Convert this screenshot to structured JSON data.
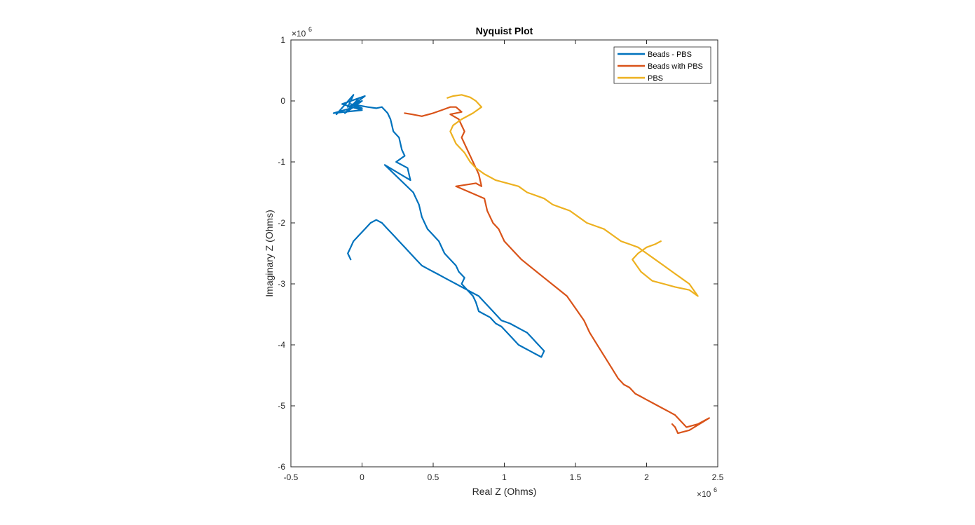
{
  "chart_data": {
    "type": "line",
    "title": "Nyquist Plot",
    "xlabel": "Real Z (Ohms)",
    "ylabel": "Imaginary Z (Ohms)",
    "x_exponent_label": "×10",
    "x_exponent_power": "6",
    "y_exponent_label": "×10",
    "y_exponent_power": "6",
    "xlim": [
      -0.5,
      2.5
    ],
    "ylim": [
      -6,
      1
    ],
    "xticks": [
      -0.5,
      0,
      0.5,
      1,
      1.5,
      2,
      2.5
    ],
    "xtick_labels": [
      "-0.5",
      "0",
      "0.5",
      "1",
      "1.5",
      "2",
      "2.5"
    ],
    "yticks": [
      -6,
      -5,
      -4,
      -3,
      -2,
      -1,
      0,
      1
    ],
    "ytick_labels": [
      "-6",
      "-5",
      "-4",
      "-3",
      "-2",
      "-1",
      "0",
      "1"
    ],
    "grid": false,
    "legend_position": "top-right",
    "series": [
      {
        "name": "Beads - PBS",
        "color": "#0072BD",
        "x": [
          -0.18,
          -0.06,
          -0.1,
          0.0,
          -0.12,
          -0.02,
          -0.08,
          0.02,
          -0.14,
          0.0,
          -0.2,
          -0.05,
          0.0,
          -0.08,
          0.04,
          0.1,
          0.14,
          0.18,
          0.2,
          0.22,
          0.26,
          0.28,
          0.3,
          0.24,
          0.32,
          0.34,
          0.16,
          0.36,
          0.38,
          0.4,
          0.42,
          0.44,
          0.46,
          0.5,
          0.54,
          0.58,
          0.62,
          0.66,
          0.68,
          0.72,
          0.7,
          0.74,
          0.78,
          0.8,
          0.82,
          0.86,
          0.9,
          0.92,
          0.94,
          0.98,
          1.02,
          1.06,
          1.1,
          1.14,
          1.18,
          1.22,
          1.26,
          1.28,
          1.24,
          1.2,
          1.16,
          1.12,
          1.08,
          1.04,
          0.98,
          0.94,
          0.9,
          0.86,
          0.82,
          0.78,
          0.74,
          0.7,
          0.66,
          0.62,
          0.58,
          0.54,
          0.5,
          0.46,
          0.42,
          0.38,
          0.34,
          0.3,
          0.26,
          0.22,
          0.18,
          0.14,
          0.1,
          0.06,
          0.02,
          -0.02,
          -0.06,
          -0.08,
          -0.1,
          -0.08
        ],
        "y": [
          -0.22,
          0.1,
          -0.1,
          0.0,
          -0.2,
          0.05,
          -0.1,
          0.08,
          -0.05,
          -0.15,
          -0.2,
          -0.1,
          -0.12,
          -0.05,
          -0.1,
          -0.12,
          -0.1,
          -0.2,
          -0.3,
          -0.5,
          -0.6,
          -0.8,
          -0.9,
          -1.0,
          -1.1,
          -1.3,
          -1.05,
          -1.5,
          -1.6,
          -1.7,
          -1.9,
          -2.0,
          -2.1,
          -2.2,
          -2.3,
          -2.5,
          -2.6,
          -2.7,
          -2.8,
          -2.9,
          -3.0,
          -3.1,
          -3.2,
          -3.3,
          -3.45,
          -3.5,
          -3.55,
          -3.6,
          -3.65,
          -3.7,
          -3.8,
          -3.9,
          -4.0,
          -4.05,
          -4.1,
          -4.15,
          -4.2,
          -4.1,
          -4.0,
          -3.9,
          -3.8,
          -3.75,
          -3.7,
          -3.65,
          -3.6,
          -3.5,
          -3.4,
          -3.3,
          -3.2,
          -3.15,
          -3.1,
          -3.05,
          -3.0,
          -2.95,
          -2.9,
          -2.85,
          -2.8,
          -2.75,
          -2.7,
          -2.6,
          -2.5,
          -2.4,
          -2.3,
          -2.2,
          -2.1,
          -2.0,
          -1.95,
          -2.0,
          -2.1,
          -2.2,
          -2.3,
          -2.4,
          -2.5,
          -2.6
        ]
      },
      {
        "name": "Beads with PBS",
        "color": "#D95319",
        "x": [
          0.3,
          0.35,
          0.42,
          0.5,
          0.56,
          0.62,
          0.66,
          0.7,
          0.66,
          0.62,
          0.68,
          0.72,
          0.7,
          0.74,
          0.76,
          0.78,
          0.8,
          0.82,
          0.84,
          0.8,
          0.66,
          0.86,
          0.88,
          0.9,
          0.92,
          0.96,
          1.0,
          1.06,
          1.12,
          1.2,
          1.28,
          1.36,
          1.44,
          1.5,
          1.56,
          1.6,
          1.64,
          1.68,
          1.72,
          1.76,
          1.8,
          1.84,
          1.88,
          1.92,
          1.96,
          2.0,
          2.04,
          2.08,
          2.12,
          2.16,
          2.2,
          2.24,
          2.28,
          2.36,
          2.44,
          2.3,
          2.22,
          2.2,
          2.18
        ],
        "y": [
          -0.2,
          -0.22,
          -0.25,
          -0.2,
          -0.15,
          -0.1,
          -0.1,
          -0.18,
          -0.2,
          -0.22,
          -0.3,
          -0.5,
          -0.6,
          -0.8,
          -0.9,
          -1.0,
          -1.1,
          -1.2,
          -1.4,
          -1.35,
          -1.4,
          -1.6,
          -1.8,
          -1.9,
          -2.0,
          -2.1,
          -2.3,
          -2.45,
          -2.6,
          -2.75,
          -2.9,
          -3.05,
          -3.2,
          -3.4,
          -3.6,
          -3.8,
          -3.95,
          -4.1,
          -4.25,
          -4.4,
          -4.55,
          -4.65,
          -4.7,
          -4.8,
          -4.85,
          -4.9,
          -4.95,
          -5.0,
          -5.05,
          -5.1,
          -5.15,
          -5.25,
          -5.35,
          -5.3,
          -5.2,
          -5.4,
          -5.45,
          -5.35,
          -5.3
        ]
      },
      {
        "name": "PBS",
        "color": "#EDB120",
        "x": [
          0.6,
          0.64,
          0.7,
          0.76,
          0.8,
          0.84,
          0.78,
          0.7,
          0.64,
          0.62,
          0.66,
          0.72,
          0.76,
          0.8,
          0.86,
          0.94,
          1.02,
          1.1,
          1.16,
          1.22,
          1.28,
          1.34,
          1.4,
          1.46,
          1.52,
          1.58,
          1.64,
          1.7,
          1.76,
          1.82,
          1.88,
          1.94,
          2.0,
          2.06,
          2.12,
          2.18,
          2.24,
          2.3,
          2.36,
          2.3,
          2.2,
          2.12,
          2.04,
          1.96,
          1.9,
          1.94,
          2.0,
          2.06,
          2.1
        ],
        "y": [
          0.05,
          0.08,
          0.1,
          0.06,
          0.0,
          -0.1,
          -0.2,
          -0.3,
          -0.4,
          -0.5,
          -0.7,
          -0.85,
          -1.0,
          -1.1,
          -1.2,
          -1.3,
          -1.35,
          -1.4,
          -1.5,
          -1.55,
          -1.6,
          -1.7,
          -1.75,
          -1.8,
          -1.9,
          -2.0,
          -2.05,
          -2.1,
          -2.2,
          -2.3,
          -2.35,
          -2.4,
          -2.5,
          -2.6,
          -2.7,
          -2.8,
          -2.9,
          -3.0,
          -3.2,
          -3.1,
          -3.05,
          -3.0,
          -2.95,
          -2.8,
          -2.6,
          -2.5,
          -2.4,
          -2.35,
          -2.3
        ]
      }
    ]
  }
}
